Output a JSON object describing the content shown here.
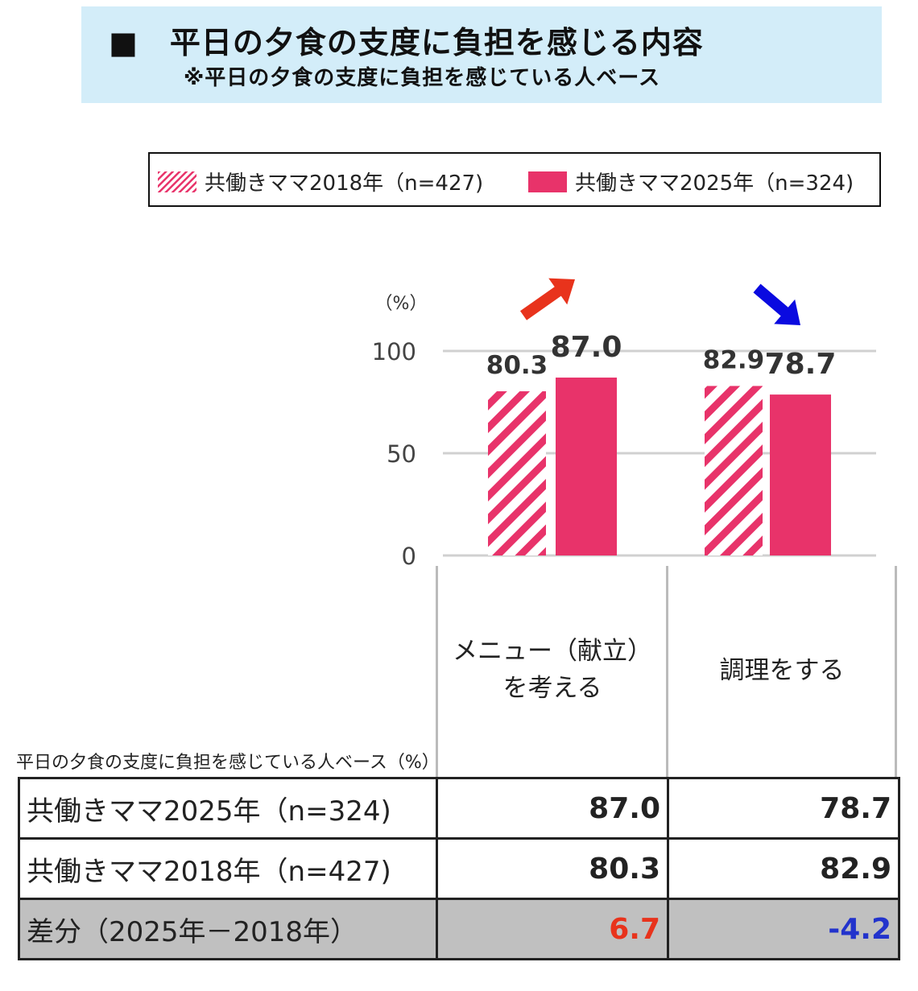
{
  "header": {
    "title": "■　平日の夕食の支度に負担を感じる内容",
    "subtitle": "※平日の夕食の支度に負担を感じている人ベース"
  },
  "legend": [
    {
      "label": "共働きママ2018年（n=427)",
      "style": "hatched"
    },
    {
      "label": "共働きママ2025年（n=324)",
      "style": "solid"
    }
  ],
  "colors": {
    "bar": "#e8336a",
    "up_arrow": "#e8331c",
    "down_arrow": "#0a0ae0",
    "negative": "#2233cc",
    "positive": "#e8331c",
    "diff_row_bg": "#c0c0c0",
    "title_bg": "#d3edf9"
  },
  "chart_data": {
    "type": "bar",
    "categories": [
      "メニュー（献立）を考える",
      "調理をする"
    ],
    "category_lines": [
      [
        "メニュー（献立）",
        "を考える"
      ],
      [
        "調理をする"
      ]
    ],
    "series": [
      {
        "name": "共働きママ2018年（n=427)",
        "values": [
          80.3,
          82.9
        ],
        "style": "hatched"
      },
      {
        "name": "共働きママ2025年（n=324)",
        "values": [
          87.0,
          78.7
        ],
        "style": "solid"
      }
    ],
    "ylabel": "（%）",
    "ylim": [
      0,
      100
    ],
    "yticks": [
      0,
      50,
      100
    ],
    "grid": true,
    "legend_position": "top",
    "trend_arrows": [
      "up",
      "down"
    ]
  },
  "table": {
    "caption": "平日の夕食の支度に負担を感じている人ベース（%）",
    "rows": [
      {
        "label": "共働きママ2025年（n=324)",
        "values": [
          "87.0",
          "78.7"
        ]
      },
      {
        "label": "共働きママ2018年（n=427)",
        "values": [
          "80.3",
          "82.9"
        ]
      },
      {
        "label": "差分（2025年－2018年）",
        "values": [
          "6.7",
          "-4.2"
        ]
      }
    ]
  }
}
